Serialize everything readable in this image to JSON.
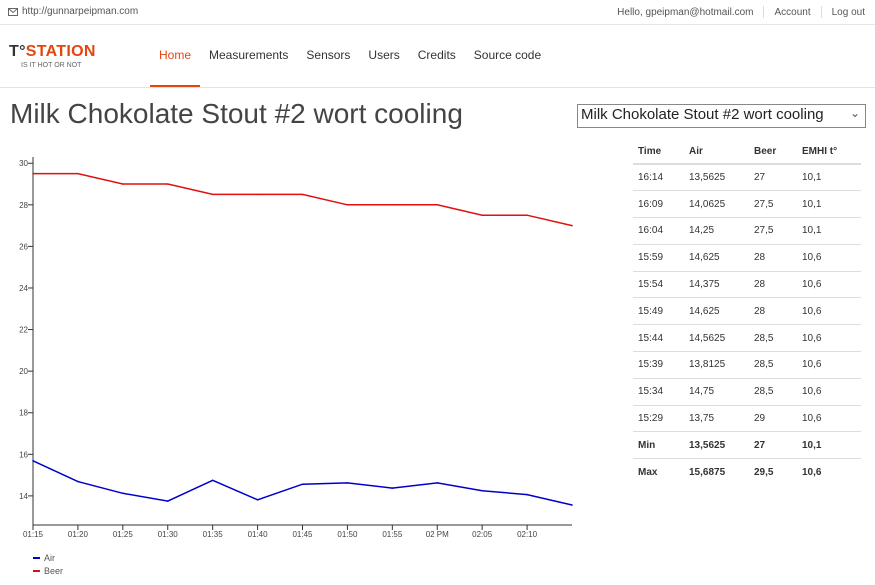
{
  "topbar": {
    "site": "http://gunnarpeipman.com",
    "greeting": "Hello, gpeipman@hotmail.com",
    "account": "Account",
    "logout": "Log out"
  },
  "brand": {
    "t": "T°",
    "station": "STATION",
    "tagline": "IS IT HOT OR NOT"
  },
  "nav": [
    "Home",
    "Measurements",
    "Sensors",
    "Users",
    "Credits",
    "Source code"
  ],
  "page": {
    "title": "Milk Chokolate Stout #2 wort cooling",
    "selected_option": "Milk Chokolate Stout #2 wort cooling"
  },
  "colors": {
    "accent": "#e5450f",
    "air": "#0000cc",
    "beer": "#e01010"
  },
  "chart_data": {
    "type": "line",
    "x": [
      "01:15",
      "01:20",
      "01:25",
      "01:30",
      "01:35",
      "01:40",
      "01:45",
      "01:50",
      "01:55",
      "02 PM",
      "02:05",
      "02:10",
      "02:14"
    ],
    "xticks": [
      "01:15",
      "01:20",
      "01:25",
      "01:30",
      "01:35",
      "01:40",
      "01:45",
      "01:50",
      "01:55",
      "02 PM",
      "02:05",
      "02:10"
    ],
    "yticks": [
      14,
      16,
      18,
      20,
      22,
      24,
      26,
      28,
      30
    ],
    "ylim": [
      12.6,
      30.3
    ],
    "series": [
      {
        "name": "Air",
        "color": "#0000cc",
        "values": [
          15.6875,
          14.6875,
          14.125,
          13.75,
          14.75,
          13.8125,
          14.5625,
          14.625,
          14.375,
          14.625,
          14.25,
          14.0625,
          13.5625
        ]
      },
      {
        "name": "Beer",
        "color": "#e01010",
        "values": [
          29.5,
          29.5,
          29,
          29,
          28.5,
          28.5,
          28.5,
          28,
          28,
          28,
          27.5,
          27.5,
          27
        ]
      }
    ],
    "legend_position": "bottom-left"
  },
  "table": {
    "headers": [
      "Time",
      "Air",
      "Beer",
      "EMHI t°"
    ],
    "rows": [
      [
        "16:14",
        "13,5625",
        "27",
        "10,1"
      ],
      [
        "16:09",
        "14,0625",
        "27,5",
        "10,1"
      ],
      [
        "16:04",
        "14,25",
        "27,5",
        "10,1"
      ],
      [
        "15:59",
        "14,625",
        "28",
        "10,6"
      ],
      [
        "15:54",
        "14,375",
        "28",
        "10,6"
      ],
      [
        "15:49",
        "14,625",
        "28",
        "10,6"
      ],
      [
        "15:44",
        "14,5625",
        "28,5",
        "10,6"
      ],
      [
        "15:39",
        "13,8125",
        "28,5",
        "10,6"
      ],
      [
        "15:34",
        "14,75",
        "28,5",
        "10,6"
      ],
      [
        "15:29",
        "13,75",
        "29",
        "10,6"
      ]
    ],
    "summary": [
      [
        "Min",
        "13,5625",
        "27",
        "10,1"
      ],
      [
        "Max",
        "15,6875",
        "29,5",
        "10,6"
      ]
    ]
  }
}
